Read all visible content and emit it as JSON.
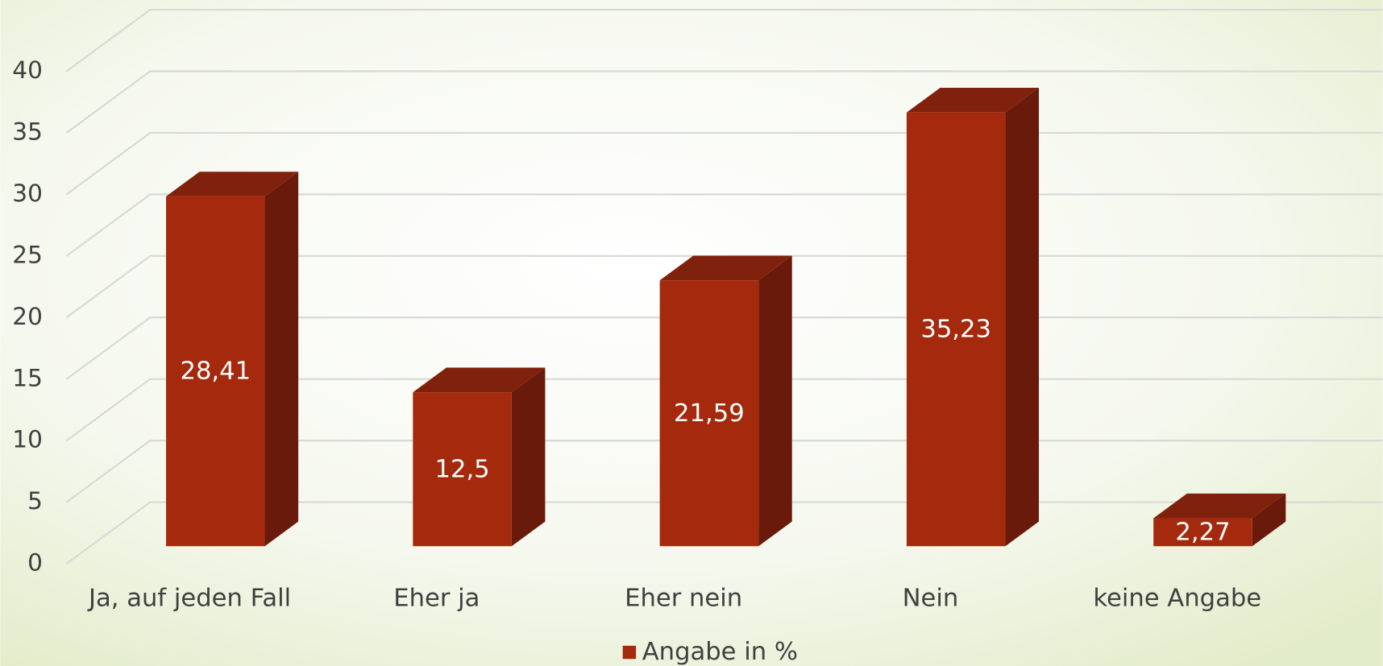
{
  "chart_data": {
    "type": "bar3d",
    "categories": [
      "Ja, auf jeden Fall",
      "Eher ja",
      "Eher nein",
      "Nein",
      "keine Angabe"
    ],
    "series": [
      {
        "name": "Angabe in %",
        "color": "#a52a0d",
        "values": [
          28.41,
          12.5,
          21.59,
          35.23,
          2.27
        ],
        "value_labels": [
          "28,41",
          "12,5",
          "21,59",
          "35,23",
          "2,27"
        ]
      }
    ],
    "ylim": [
      0,
      40
    ],
    "yticks": [
      0,
      5,
      10,
      15,
      20,
      25,
      30,
      35,
      40
    ],
    "grid": true,
    "legend": "bottom"
  }
}
